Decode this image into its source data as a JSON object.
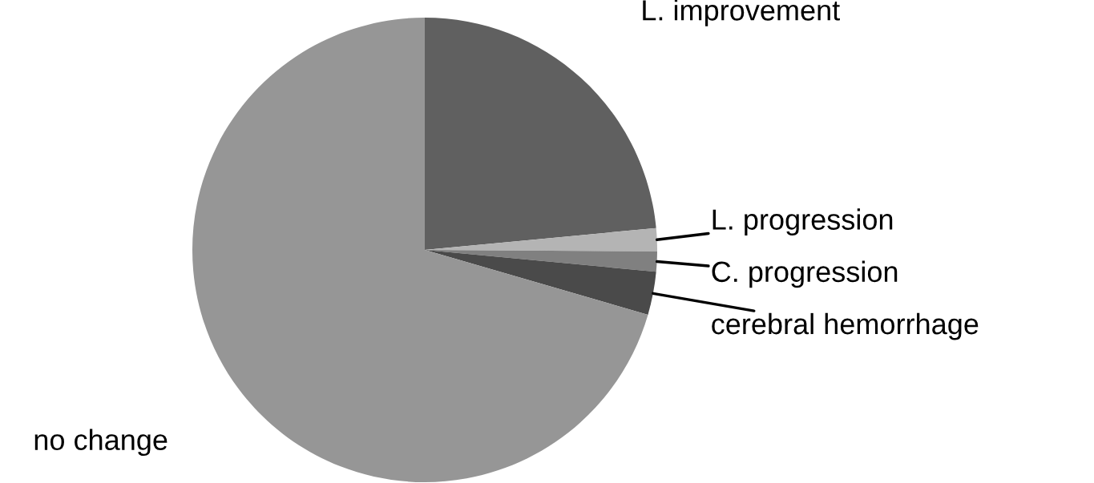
{
  "chart_data": {
    "type": "pie",
    "categories": [
      "L. improvement",
      "L. progression",
      "C. progression",
      "cerebral hemorrhage",
      "no change"
    ],
    "values": [
      23.5,
      1.6,
      1.4,
      3.0,
      70.5
    ],
    "colors": [
      "#606060",
      "#b4b4b4",
      "#808080",
      "#4a4a4a",
      "#969696"
    ]
  }
}
